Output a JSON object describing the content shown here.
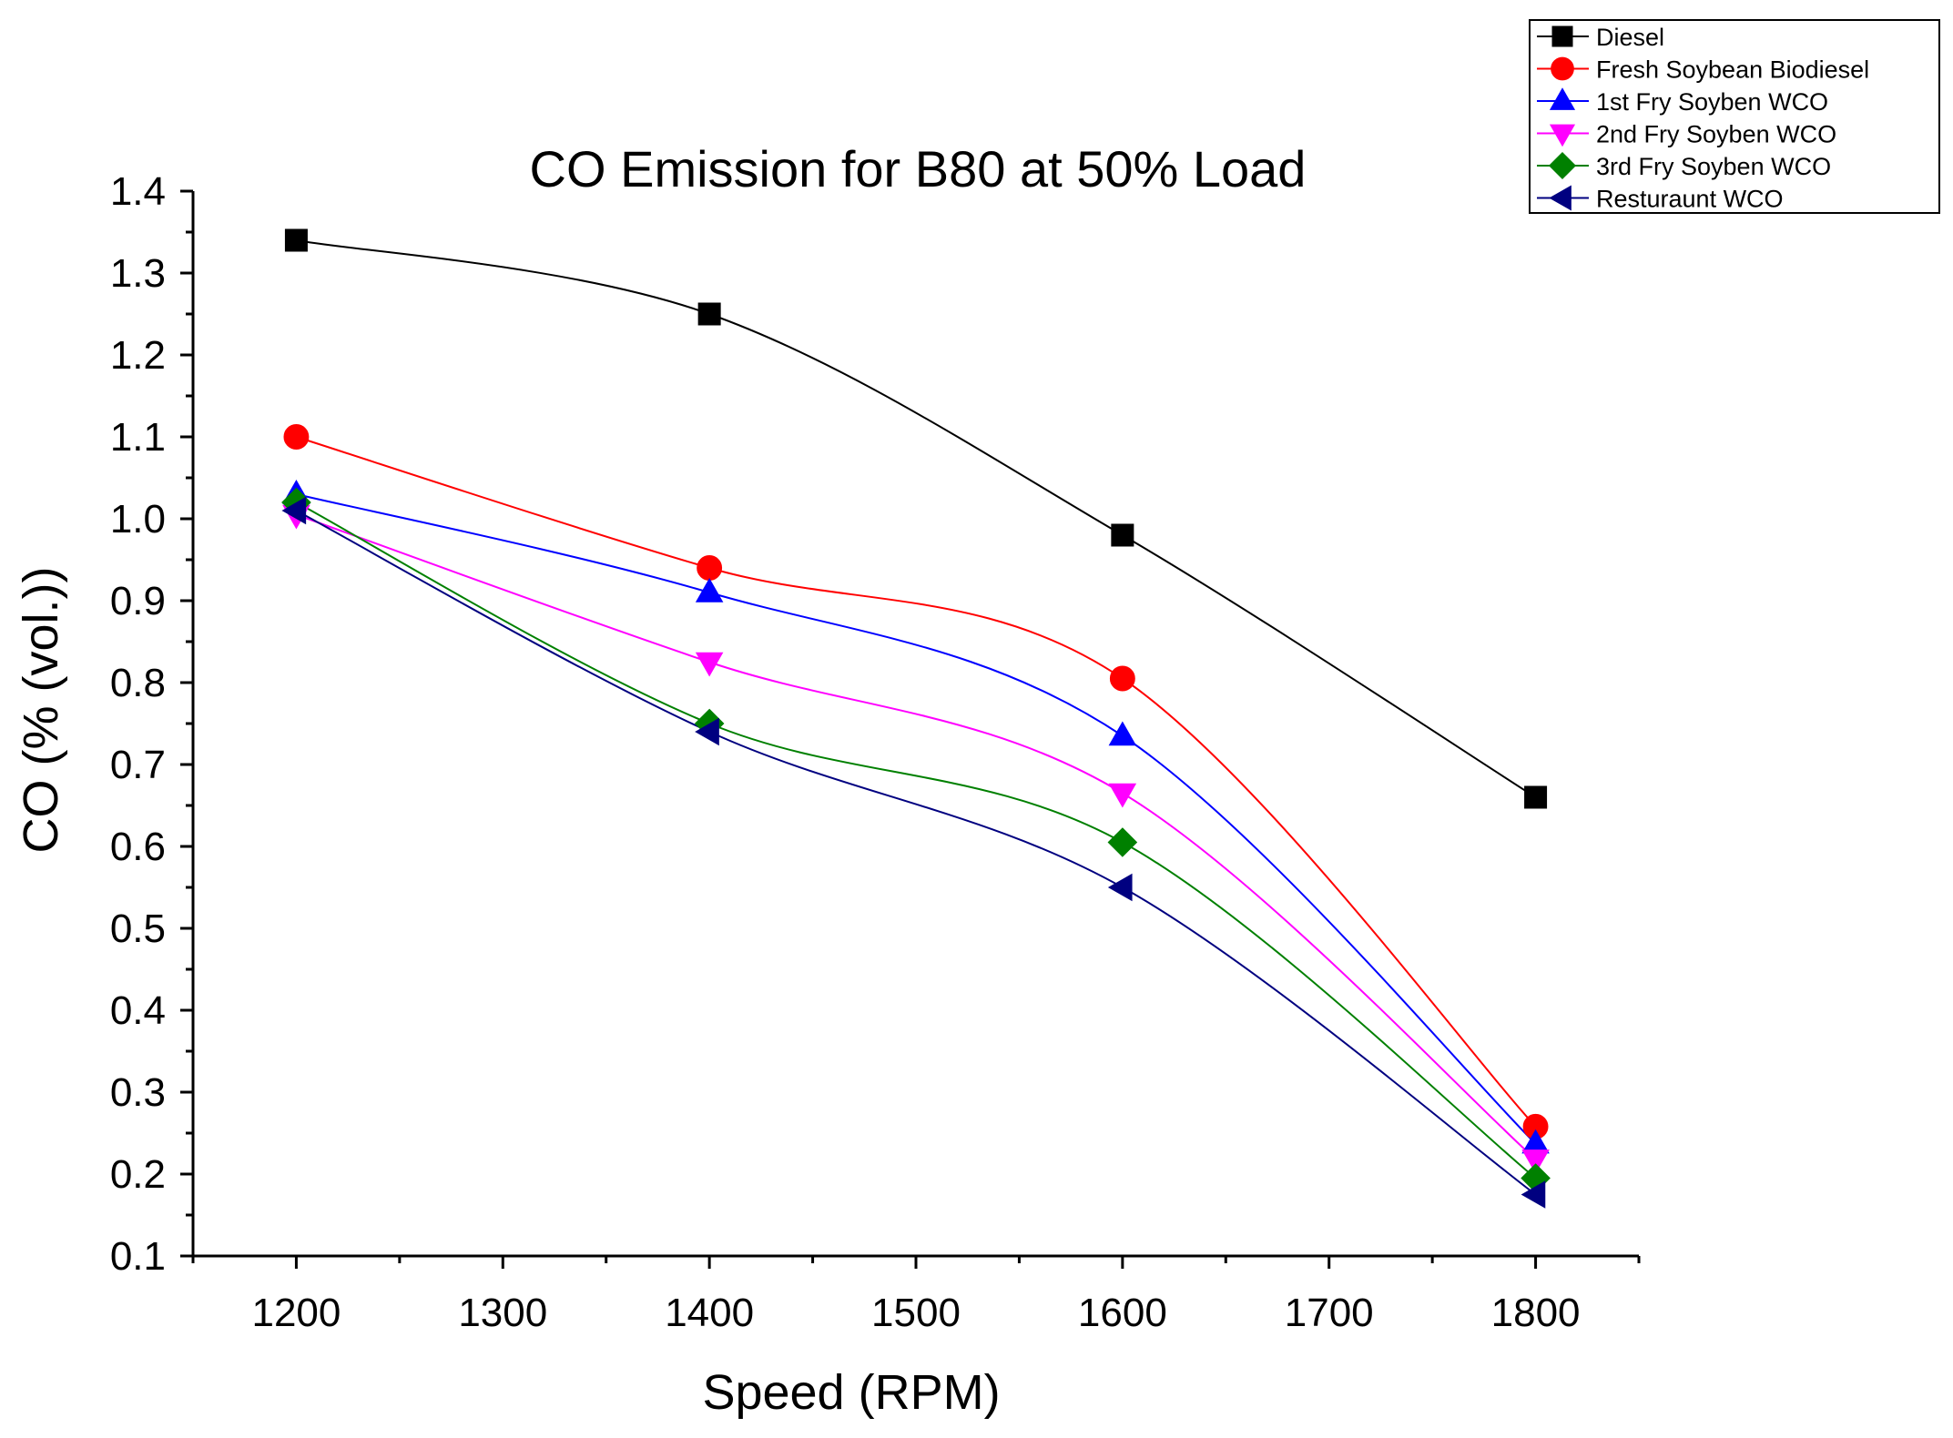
{
  "chart_data": {
    "type": "line",
    "title": "CO Emission for B80 at 50% Load",
    "xlabel": "Speed (RPM)",
    "ylabel": "CO (% (vol.))",
    "xlim": [
      1150,
      1850
    ],
    "ylim": [
      0.1,
      1.4
    ],
    "x_ticks": [
      "1200",
      "1300",
      "1400",
      "1500",
      "1600",
      "1700",
      "1800"
    ],
    "y_ticks": [
      "0.1",
      "0.2",
      "0.3",
      "0.4",
      "0.5",
      "0.6",
      "0.7",
      "0.8",
      "0.9",
      "1.0",
      "1.1",
      "1.2",
      "1.3",
      "1.4"
    ],
    "x": [
      1200,
      1400,
      1600,
      1800
    ],
    "grid": false,
    "legend_position": "top-right",
    "series": [
      {
        "name": "Diesel",
        "values": [
          1.34,
          1.25,
          0.98,
          0.66
        ],
        "color": "#000000",
        "marker": "square"
      },
      {
        "name": "Fresh Soybean Biodiesel",
        "values": [
          1.1,
          0.94,
          0.805,
          0.258
        ],
        "color": "#ff0000",
        "marker": "circle"
      },
      {
        "name": "1st Fry Soyben WCO",
        "values": [
          1.03,
          0.91,
          0.735,
          0.237
        ],
        "color": "#0000ff",
        "marker": "triangle-up"
      },
      {
        "name": "2nd Fry Soyben WCO",
        "values": [
          1.005,
          0.825,
          0.665,
          0.218
        ],
        "color": "#ff00ff",
        "marker": "triangle-down"
      },
      {
        "name": "3rd Fry Soyben WCO",
        "values": [
          1.02,
          0.75,
          0.605,
          0.195
        ],
        "color": "#008000",
        "marker": "diamond"
      },
      {
        "name": "Resturaunt WCO",
        "values": [
          1.01,
          0.74,
          0.55,
          0.175
        ],
        "color": "#000080",
        "marker": "triangle-left"
      }
    ]
  }
}
